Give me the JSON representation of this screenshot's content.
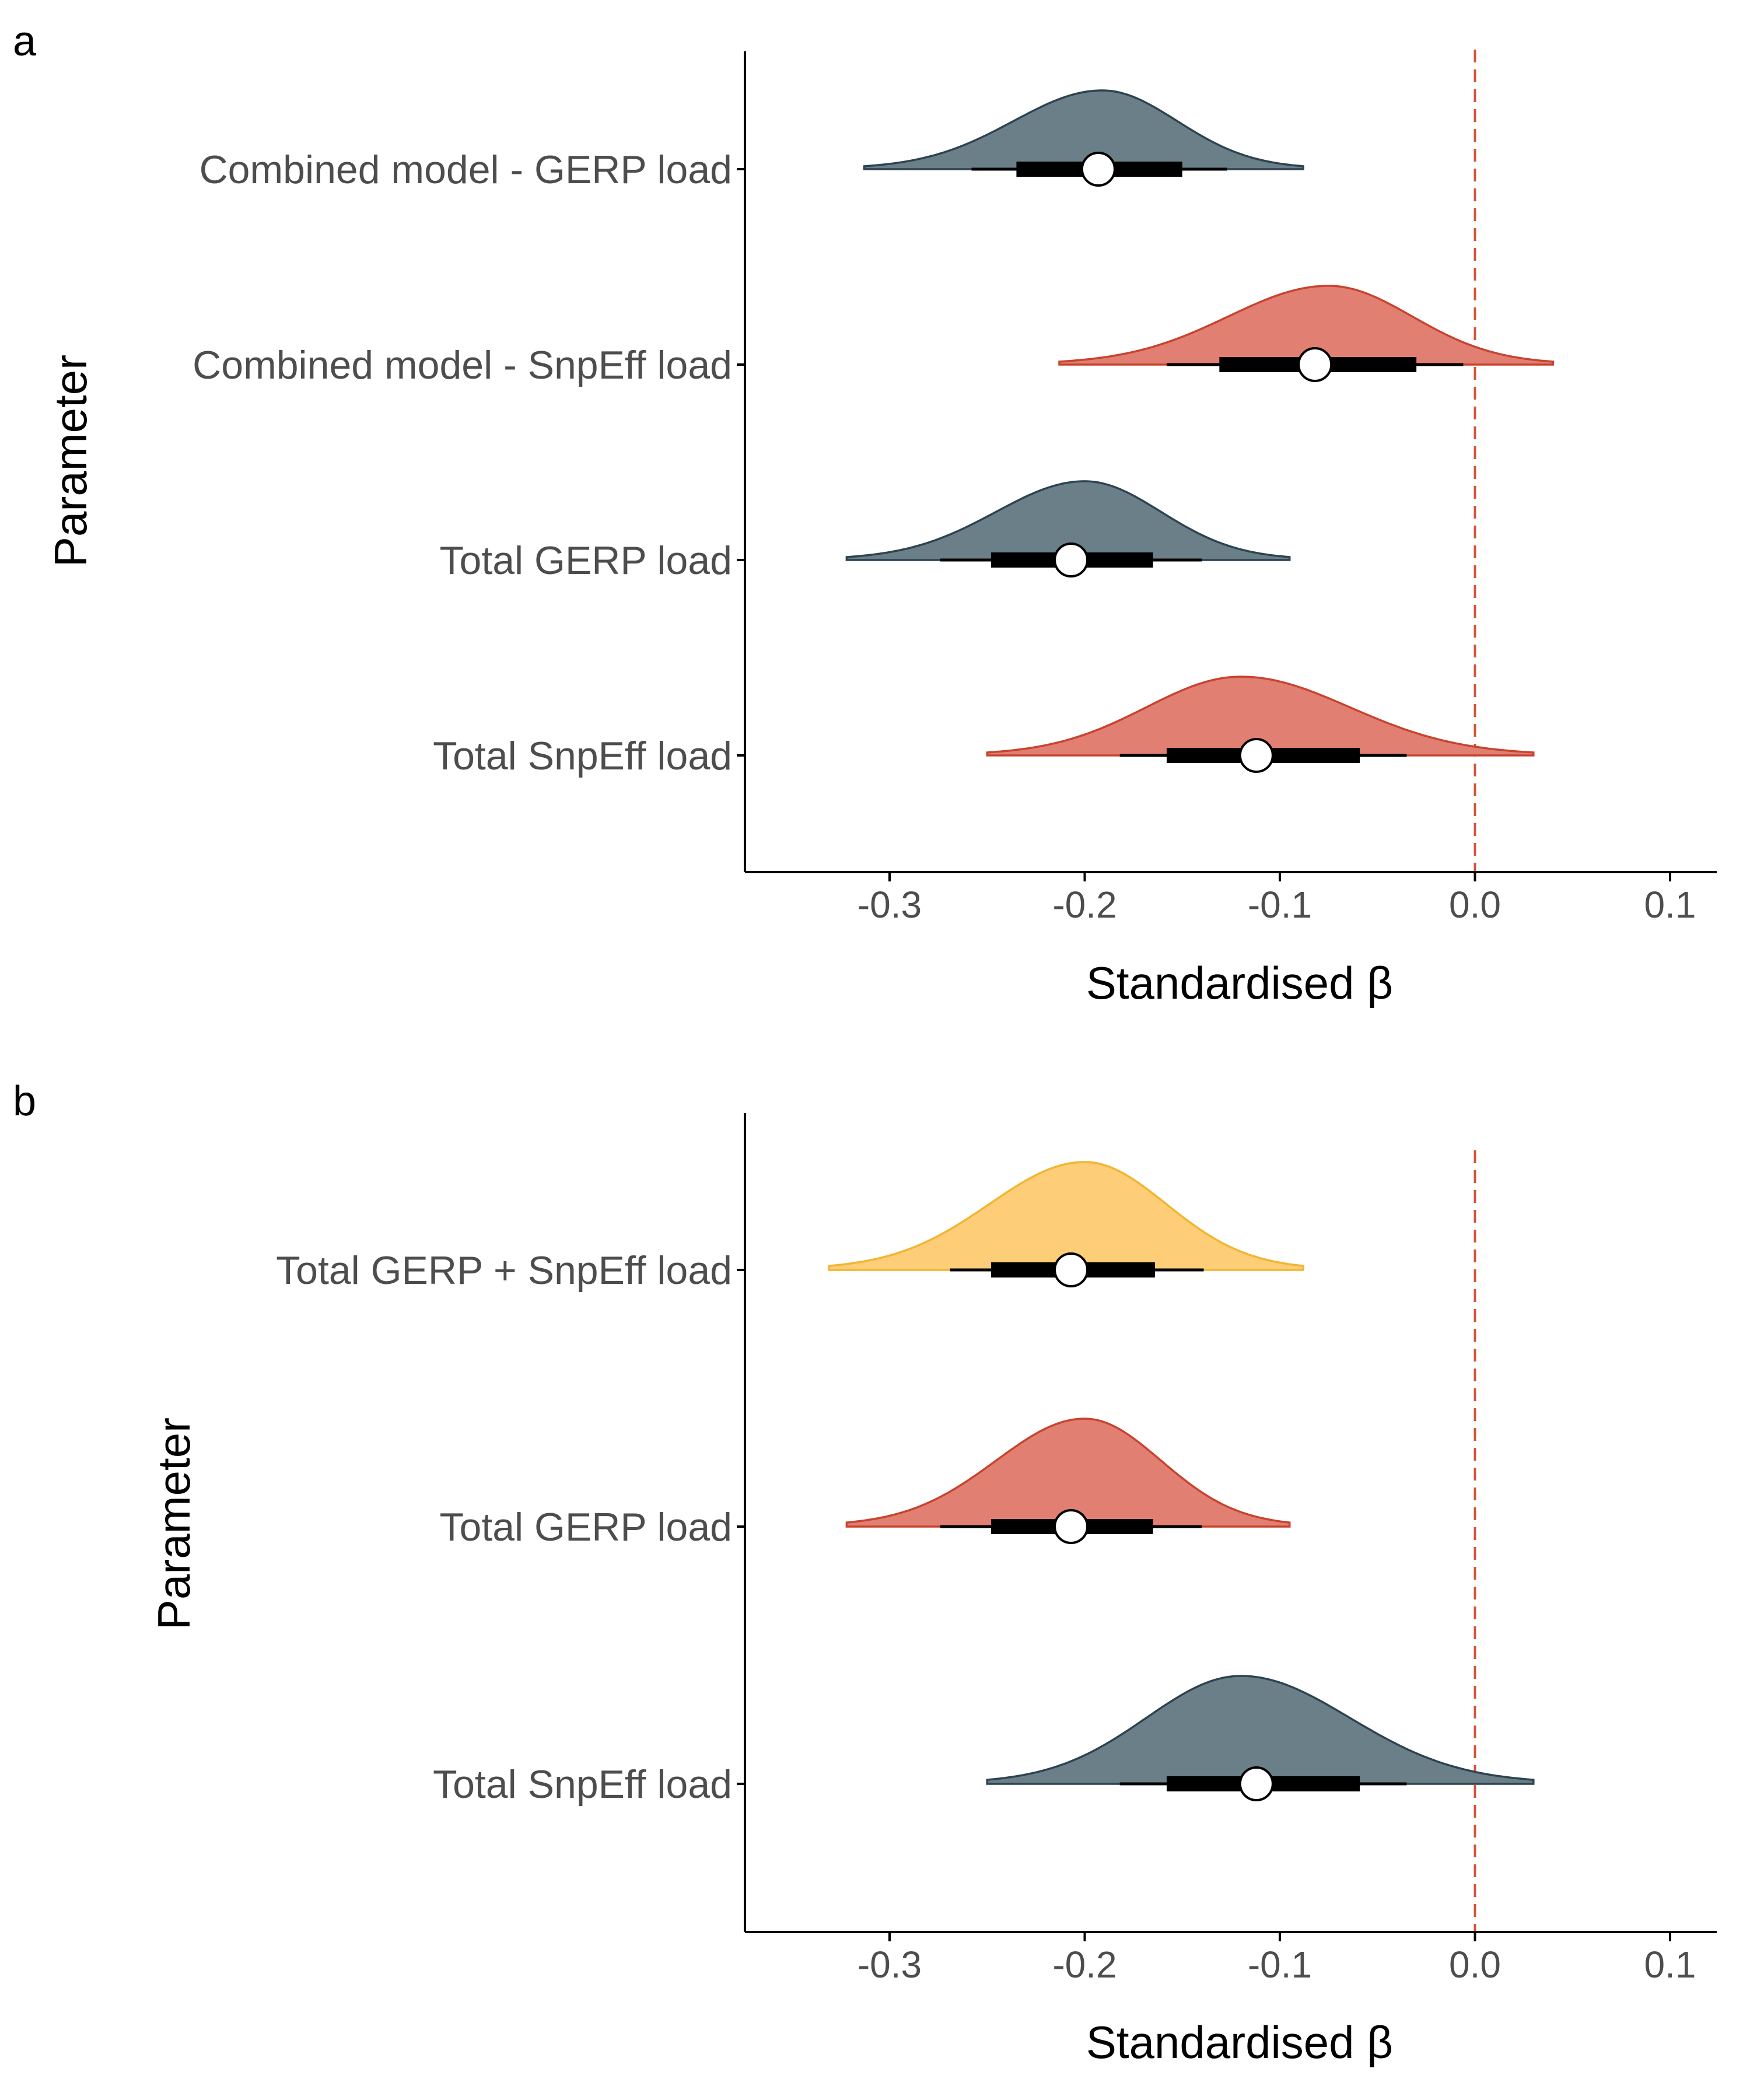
{
  "colors": {
    "slate": "#6a7f87",
    "slate_line": "#2e4350",
    "salmon": "#e07f72",
    "salmon_line": "#c8432f",
    "gold": "#fecd78",
    "gold_line": "#f2b531",
    "zero_line": "#d2553a"
  },
  "chart_data": [
    {
      "panel": "a",
      "type": "halfeye",
      "xlabel": "Standardised β",
      "ylabel": "Parameter",
      "xlim": [
        -0.37,
        0.123
      ],
      "xticks": [
        -0.3,
        -0.2,
        -0.1,
        0.0,
        0.1
      ],
      "xtick_labels": [
        "-0.3",
        "-0.2",
        "-0.1",
        "0.0",
        "0.1"
      ],
      "reference_line": 0.0,
      "grid": false,
      "rows": [
        {
          "label": "Combined model - GERP load",
          "color": "slate",
          "median": -0.193,
          "interval_66": [
            -0.235,
            -0.15
          ],
          "interval_95": [
            -0.258,
            -0.127
          ],
          "range": [
            -0.313,
            -0.088
          ],
          "density_peak": -0.191
        },
        {
          "label": "Combined model - SnpEff load",
          "color": "salmon",
          "median": -0.082,
          "interval_66": [
            -0.131,
            -0.03
          ],
          "interval_95": [
            -0.158,
            -0.006
          ],
          "range": [
            -0.213,
            0.04
          ],
          "density_peak": -0.075
        },
        {
          "label": "Total GERP load",
          "color": "slate",
          "median": -0.207,
          "interval_66": [
            -0.248,
            -0.165
          ],
          "interval_95": [
            -0.274,
            -0.14
          ],
          "range": [
            -0.322,
            -0.095
          ],
          "density_peak": -0.2
        },
        {
          "label": "Total SnpEff load",
          "color": "salmon",
          "median": -0.112,
          "interval_66": [
            -0.158,
            -0.059
          ],
          "interval_95": [
            -0.182,
            -0.035
          ],
          "range": [
            -0.25,
            0.03
          ],
          "density_peak": -0.12
        }
      ]
    },
    {
      "panel": "b",
      "type": "halfeye",
      "xlabel": "Standardised β",
      "ylabel": "Parameter",
      "xlim": [
        -0.37,
        0.123
      ],
      "xticks": [
        -0.3,
        -0.2,
        -0.1,
        0.0,
        0.1
      ],
      "xtick_labels": [
        "-0.3",
        "-0.2",
        "-0.1",
        "0.0",
        "0.1"
      ],
      "reference_line": 0.0,
      "grid": false,
      "rows": [
        {
          "label": "Total GERP + SnpEff load",
          "color": "gold",
          "median": -0.207,
          "interval_66": [
            -0.248,
            -0.164
          ],
          "interval_95": [
            -0.269,
            -0.139
          ],
          "range": [
            -0.331,
            -0.088
          ],
          "density_peak": -0.2
        },
        {
          "label": "Total GERP load",
          "color": "salmon",
          "median": -0.207,
          "interval_66": [
            -0.248,
            -0.165
          ],
          "interval_95": [
            -0.274,
            -0.14
          ],
          "range": [
            -0.322,
            -0.095
          ],
          "density_peak": -0.2
        },
        {
          "label": "Total SnpEff load",
          "color": "slate",
          "median": -0.112,
          "interval_66": [
            -0.158,
            -0.059
          ],
          "interval_95": [
            -0.182,
            -0.035
          ],
          "range": [
            -0.25,
            0.03
          ],
          "density_peak": -0.12
        }
      ]
    }
  ]
}
